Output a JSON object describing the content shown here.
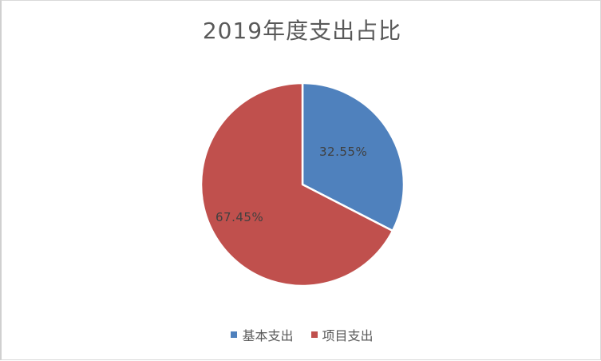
{
  "chart_data": {
    "type": "pie",
    "title": "2019年度支出占比",
    "categories": [
      "基本支出",
      "项目支出"
    ],
    "values": [
      32.55,
      67.45
    ],
    "labels": [
      "32.55%",
      "67.45%"
    ],
    "colors": [
      "#4f81bd",
      "#c0504d"
    ],
    "start_angle": "12 o'clock",
    "direction": "clockwise",
    "legend_position": "bottom",
    "unit": "%"
  },
  "title": "2019年度支出占比",
  "slices": [
    {
      "name": "基本支出",
      "percent": 32.55,
      "label": "32.55%",
      "color": "#4f81bd"
    },
    {
      "name": "项目支出",
      "percent": 67.45,
      "label": "67.45%",
      "color": "#c0504d"
    }
  ],
  "legend": {
    "items": [
      {
        "label": "基本支出",
        "color": "#4f81bd"
      },
      {
        "label": "项目支出",
        "color": "#c0504d"
      }
    ]
  },
  "colors": {
    "border": "#d9d9d9",
    "title_text": "#595959",
    "label_text": "#404040",
    "separator": "#ffffff"
  }
}
